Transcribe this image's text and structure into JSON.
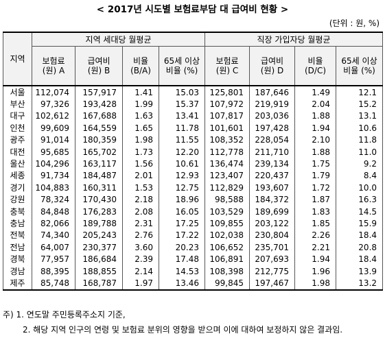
{
  "header": {
    "title": "< 2017년 시도별 보험료부담 대 급여비 현황 >",
    "unit": "(단위 : 원, %)"
  },
  "table": {
    "region_header": "지역",
    "groups": [
      "지역 세대당 월평균",
      "직장 가입자당 월평균"
    ],
    "columns": [
      "보험료\n(원) A",
      "급여비\n(원) B",
      "비율\n(B/A)",
      "65세 이상\n비율 (%)",
      "보험료\n(원) C",
      "급여비\n(원) D",
      "비율\n(D/C)",
      "65세 이상\n비율 (%)"
    ],
    "rows": [
      [
        "서울",
        "112,074",
        "157,917",
        "1.41",
        "15.03",
        "125,801",
        "187,646",
        "1.49",
        "12.1"
      ],
      [
        "부산",
        "97,326",
        "193,428",
        "1.99",
        "15.37",
        "107,972",
        "219,919",
        "2.04",
        "15.2"
      ],
      [
        "대구",
        "102,612",
        "167,688",
        "1.63",
        "13.41",
        "107,817",
        "203,036",
        "1.88",
        "13.1"
      ],
      [
        "인천",
        "99,609",
        "164,559",
        "1.65",
        "11.78",
        "101,601",
        "197,428",
        "1.94",
        "10.6"
      ],
      [
        "광주",
        "91,014",
        "180,359",
        "1.98",
        "11.55",
        "108,352",
        "228,054",
        "2.10",
        "11.8"
      ],
      [
        "대전",
        "95,685",
        "165,702",
        "1.73",
        "12.20",
        "112,778",
        "211,710",
        "1.88",
        "11.0"
      ],
      [
        "울산",
        "104,296",
        "163,117",
        "1.56",
        "10.61",
        "136,474",
        "239,134",
        "1.75",
        "9.2"
      ],
      [
        "세종",
        "91,734",
        "184,487",
        "2.01",
        "12.93",
        "123,407",
        "220,437",
        "1.79",
        "8.4"
      ],
      [
        "경기",
        "104,883",
        "160,311",
        "1.53",
        "12.75",
        "112,829",
        "193,607",
        "1.72",
        "10.0"
      ],
      [
        "강원",
        "78,324",
        "170,430",
        "2.18",
        "18.96",
        "98,588",
        "184,372",
        "1.87",
        "16.3"
      ],
      [
        "충북",
        "84,848",
        "176,283",
        "2.08",
        "16.05",
        "103,529",
        "189,699",
        "1.83",
        "14.5"
      ],
      [
        "충남",
        "82,066",
        "189,788",
        "2.31",
        "17.25",
        "109,855",
        "203,122",
        "1.85",
        "15.9"
      ],
      [
        "전북",
        "74,340",
        "205,243",
        "2.76",
        "17.22",
        "102,038",
        "230,804",
        "2.26",
        "18.4"
      ],
      [
        "전남",
        "64,007",
        "230,377",
        "3.60",
        "20.23",
        "106,652",
        "235,701",
        "2.21",
        "20.8"
      ],
      [
        "경북",
        "77,957",
        "186,684",
        "2.39",
        "17.48",
        "106,891",
        "207,693",
        "1.94",
        "18.4"
      ],
      [
        "경남",
        "88,395",
        "188,855",
        "2.14",
        "14.53",
        "108,398",
        "212,775",
        "1.96",
        "13.9"
      ],
      [
        "제주",
        "85,748",
        "168,787",
        "1.97",
        "13.46",
        "99,845",
        "197,467",
        "1.98",
        "13.2"
      ]
    ]
  },
  "notes": [
    "주) 1. 연도말 주민등록주소지 기준,",
    "2. 해당 지역 인구의 연령 및 보험료 분위의 영향을 받으며 이에 대하여 보정하지 않은 결과임."
  ]
}
